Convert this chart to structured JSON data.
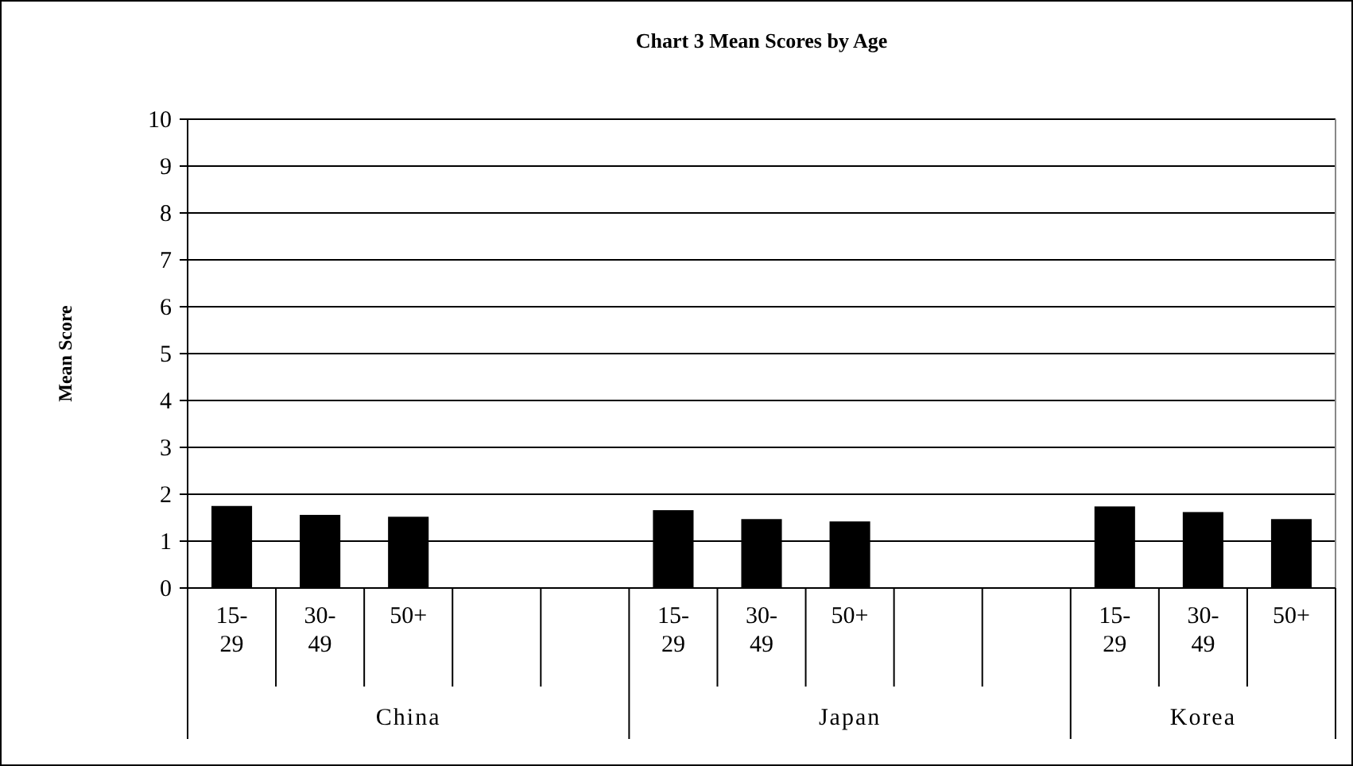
{
  "chart_data": {
    "type": "bar",
    "title": "Chart 3 Mean Scores by Age",
    "ylabel": "Mean Score",
    "categories": [
      "15-29",
      "30-49",
      "50+",
      null,
      null,
      "15-29",
      "30-49",
      "50+",
      null,
      null,
      "15-29",
      "30-49",
      "50+"
    ],
    "series": [
      {
        "color": "#000000",
        "values": [
          1.75,
          1.56,
          1.52,
          null,
          null,
          1.66,
          1.47,
          1.42,
          null,
          null,
          1.74,
          1.62,
          1.47
        ]
      }
    ],
    "annotations": [
      "China",
      "Japan",
      "Korea"
    ],
    "ylim": [
      0,
      10
    ],
    "yticks": [
      0,
      1,
      2,
      3,
      4,
      5,
      6,
      7,
      8,
      9,
      10
    ],
    "grid": "y"
  }
}
